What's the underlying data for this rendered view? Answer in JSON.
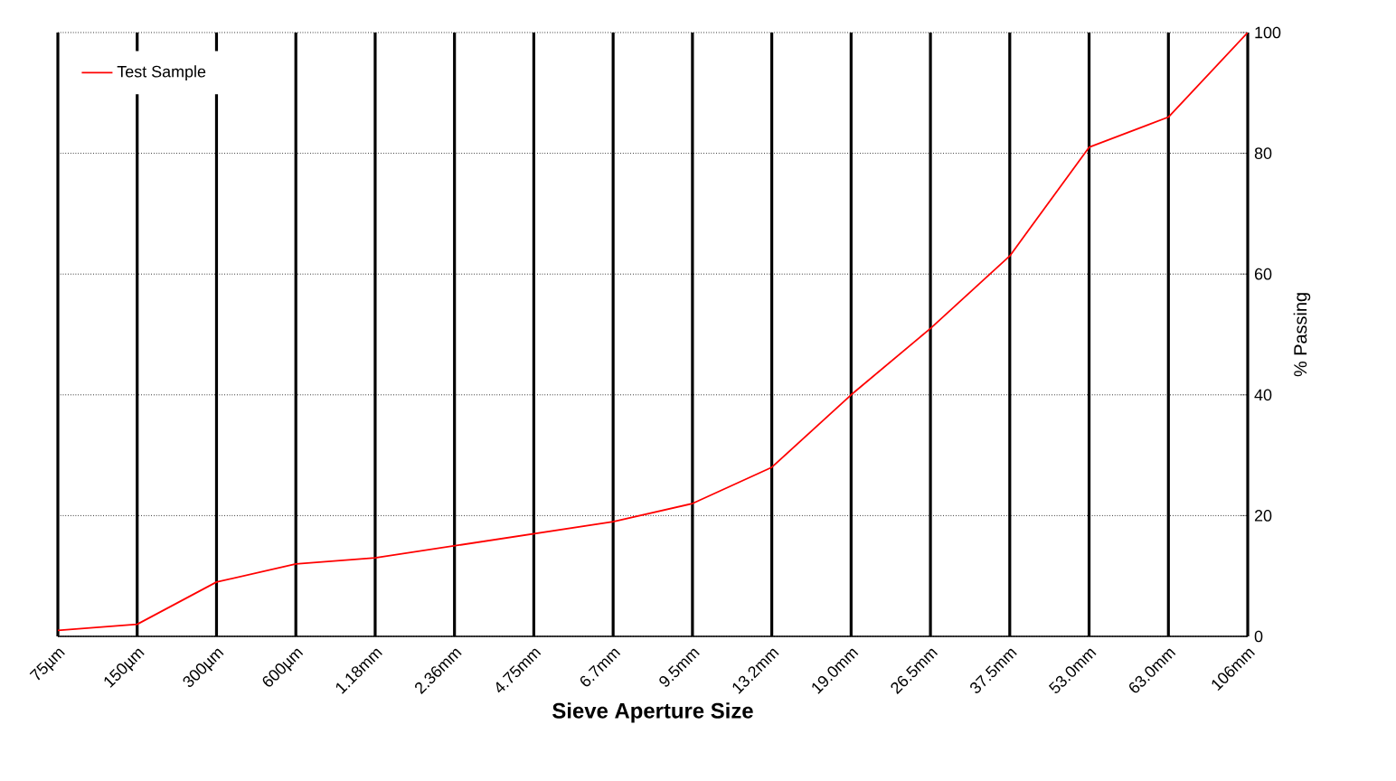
{
  "chart_data": {
    "type": "line",
    "xlabel": "Sieve Aperture Size",
    "ylabel": "% Passing",
    "categories": [
      "75µm",
      "150µm",
      "300µm",
      "600µm",
      "1.18mm",
      "2.36mm",
      "4.75mm",
      "6.7mm",
      "9.5mm",
      "13.2mm",
      "19.0mm",
      "26.5mm",
      "37.5mm",
      "53.0mm",
      "63.0mm",
      "106mm"
    ],
    "series": [
      {
        "name": "Test Sample",
        "color": "#ff0000",
        "values": [
          1,
          2,
          9,
          12,
          13,
          15,
          17,
          19,
          22,
          28,
          40,
          51,
          63,
          81,
          86,
          100
        ]
      }
    ],
    "ylim": [
      0,
      100
    ],
    "yticks": [
      0,
      20,
      40,
      60,
      80,
      100
    ],
    "grid": true,
    "legend": "top left",
    "marker": "none",
    "line_style": "solid"
  }
}
